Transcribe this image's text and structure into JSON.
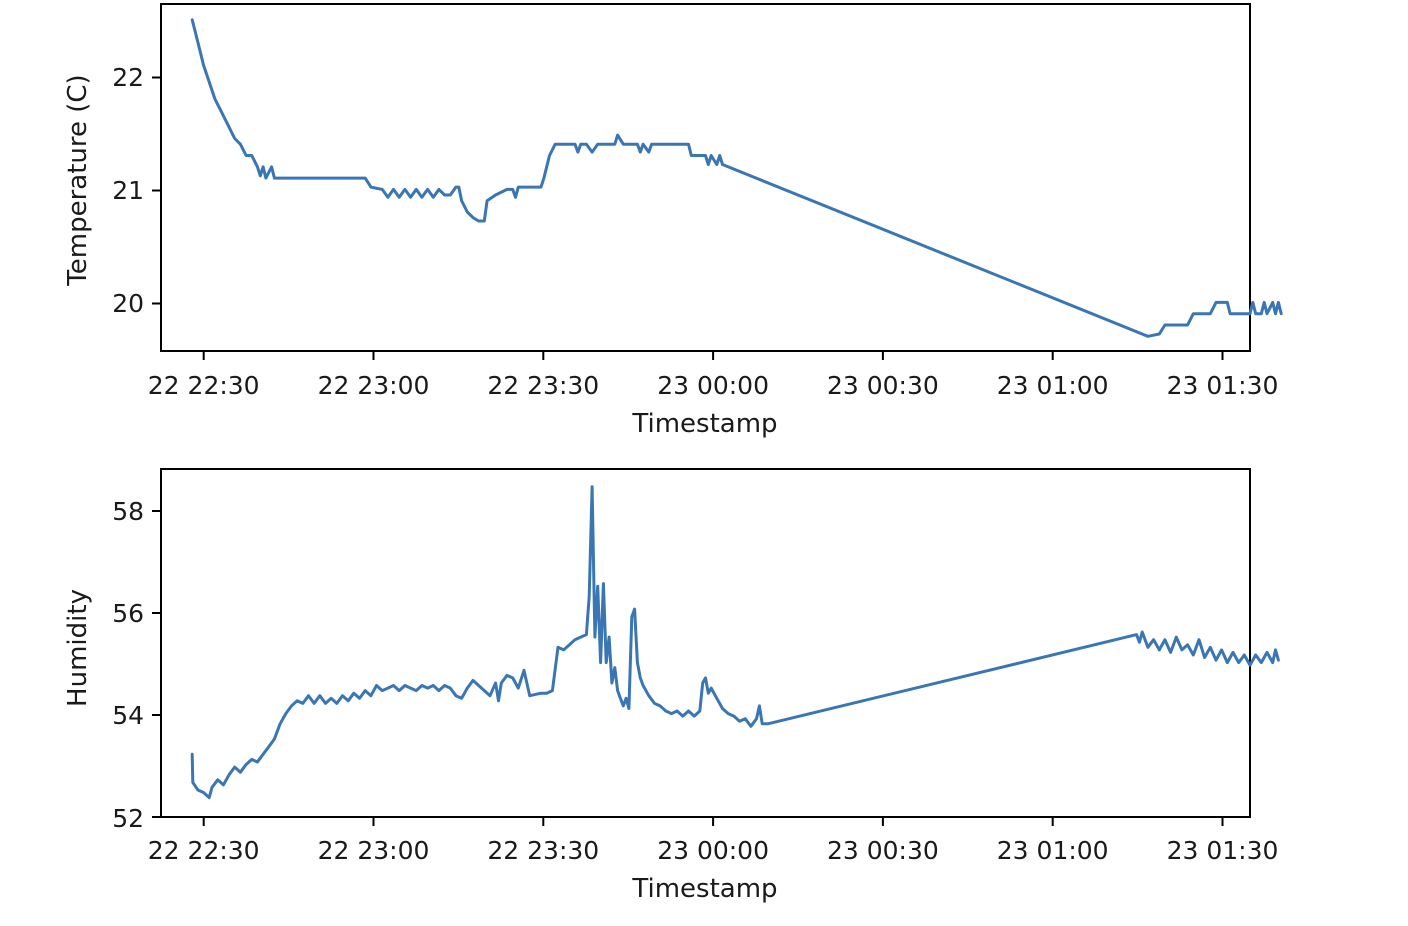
{
  "chart_data": [
    {
      "type": "line",
      "xlabel": "Timestamp",
      "ylabel": "Temperature (C)",
      "x_tick_labels": [
        "22 22:30",
        "22 23:00",
        "22 23:30",
        "23 00:00",
        "23 00:30",
        "23 01:00",
        "23 01:30"
      ],
      "y_ticks": [
        20,
        21,
        22
      ],
      "xlim": [
        -4,
        188
      ],
      "ylim": [
        19.57,
        22.64
      ],
      "x_unit": "minutes after 22 22:30",
      "series": [
        {
          "color": "#3a76b4",
          "points": [
            [
              1.5,
              22.5
            ],
            [
              2.5,
              22.3
            ],
            [
              3.5,
              22.1
            ],
            [
              4.5,
              21.95
            ],
            [
              5.5,
              21.8
            ],
            [
              6.5,
              21.7
            ],
            [
              8,
              21.55
            ],
            [
              9,
              21.45
            ],
            [
              10,
              21.4
            ],
            [
              11,
              21.3
            ],
            [
              12,
              21.3
            ],
            [
              13,
              21.2
            ],
            [
              13.5,
              21.12
            ],
            [
              14,
              21.2
            ],
            [
              14.5,
              21.1
            ],
            [
              15.5,
              21.2
            ],
            [
              16,
              21.1
            ],
            [
              24,
              21.1
            ],
            [
              30,
              21.1
            ],
            [
              32,
              21.1
            ],
            [
              33,
              21.02
            ],
            [
              35,
              21.0
            ],
            [
              36,
              20.93
            ],
            [
              37,
              21.0
            ],
            [
              38,
              20.93
            ],
            [
              39,
              21.0
            ],
            [
              40,
              20.93
            ],
            [
              41,
              21.0
            ],
            [
              42,
              20.93
            ],
            [
              43,
              21.0
            ],
            [
              44,
              20.93
            ],
            [
              45,
              21.0
            ],
            [
              46,
              20.95
            ],
            [
              47,
              20.95
            ],
            [
              48,
              21.02
            ],
            [
              48.5,
              21.02
            ],
            [
              49,
              20.9
            ],
            [
              50,
              20.8
            ],
            [
              51,
              20.75
            ],
            [
              52,
              20.72
            ],
            [
              53,
              20.72
            ],
            [
              53.5,
              20.9
            ],
            [
              55,
              20.95
            ],
            [
              57,
              21.0
            ],
            [
              58,
              21.0
            ],
            [
              58.5,
              20.93
            ],
            [
              59,
              21.02
            ],
            [
              62,
              21.02
            ],
            [
              63,
              21.02
            ],
            [
              63.5,
              21.1
            ],
            [
              64.5,
              21.3
            ],
            [
              65.5,
              21.4
            ],
            [
              69,
              21.4
            ],
            [
              69.5,
              21.33
            ],
            [
              70,
              21.4
            ],
            [
              71,
              21.4
            ],
            [
              72,
              21.33
            ],
            [
              73,
              21.4
            ],
            [
              76,
              21.4
            ],
            [
              76.5,
              21.48
            ],
            [
              77.5,
              21.4
            ],
            [
              80,
              21.4
            ],
            [
              80.5,
              21.33
            ],
            [
              81,
              21.4
            ],
            [
              82,
              21.33
            ],
            [
              82.5,
              21.4
            ],
            [
              85,
              21.4
            ],
            [
              87,
              21.4
            ],
            [
              89,
              21.4
            ],
            [
              89.5,
              21.3
            ],
            [
              92,
              21.3
            ],
            [
              92.5,
              21.22
            ],
            [
              93,
              21.3
            ],
            [
              94,
              21.22
            ],
            [
              94.5,
              21.3
            ],
            [
              95,
              21.22
            ],
            [
              170,
              19.7
            ],
            [
              172,
              19.72
            ],
            [
              173,
              19.8
            ],
            [
              177,
              19.8
            ],
            [
              178,
              19.9
            ],
            [
              181,
              19.9
            ],
            [
              182,
              20.0
            ],
            [
              184,
              20.0
            ],
            [
              184.5,
              19.9
            ],
            [
              188,
              19.9
            ],
            [
              188.5,
              20.0
            ],
            [
              189,
              19.9
            ],
            [
              190,
              19.9
            ],
            [
              190.5,
              20.0
            ],
            [
              191,
              19.9
            ],
            [
              192,
              20.0
            ],
            [
              192.5,
              19.9
            ],
            [
              193,
              20.0
            ],
            [
              193.5,
              19.9
            ]
          ]
        }
      ]
    },
    {
      "type": "line",
      "xlabel": "Timestamp",
      "ylabel": "Humidity",
      "x_tick_labels": [
        "22 22:30",
        "22 23:00",
        "22 23:30",
        "23 00:00",
        "23 00:30",
        "23 01:00",
        "23 01:30"
      ],
      "y_ticks": [
        52,
        54,
        56,
        58
      ],
      "xlim": [
        -4,
        188
      ],
      "ylim": [
        51.97,
        58.8
      ],
      "x_unit": "minutes after 22 22:30",
      "series": [
        {
          "color": "#3a76b4",
          "points": [
            [
              1.5,
              53.2
            ],
            [
              1.6,
              52.65
            ],
            [
              2.5,
              52.5
            ],
            [
              3.5,
              52.45
            ],
            [
              4.5,
              52.35
            ],
            [
              5,
              52.55
            ],
            [
              6,
              52.7
            ],
            [
              7,
              52.6
            ],
            [
              8,
              52.8
            ],
            [
              9,
              52.95
            ],
            [
              10,
              52.85
            ],
            [
              11,
              53.0
            ],
            [
              12,
              53.1
            ],
            [
              13,
              53.05
            ],
            [
              14,
              53.2
            ],
            [
              15,
              53.35
            ],
            [
              16,
              53.5
            ],
            [
              17,
              53.8
            ],
            [
              18,
              54.0
            ],
            [
              19,
              54.15
            ],
            [
              20,
              54.25
            ],
            [
              21,
              54.2
            ],
            [
              22,
              54.35
            ],
            [
              23,
              54.2
            ],
            [
              24,
              54.35
            ],
            [
              25,
              54.2
            ],
            [
              26,
              54.3
            ],
            [
              27,
              54.2
            ],
            [
              28,
              54.35
            ],
            [
              29,
              54.25
            ],
            [
              30,
              54.4
            ],
            [
              31,
              54.3
            ],
            [
              32,
              54.45
            ],
            [
              33,
              54.35
            ],
            [
              34,
              54.55
            ],
            [
              35,
              54.45
            ],
            [
              36,
              54.5
            ],
            [
              37,
              54.55
            ],
            [
              38,
              54.45
            ],
            [
              39,
              54.55
            ],
            [
              40,
              54.5
            ],
            [
              41,
              54.45
            ],
            [
              42,
              54.55
            ],
            [
              43,
              54.5
            ],
            [
              44,
              54.55
            ],
            [
              45,
              54.45
            ],
            [
              46,
              54.55
            ],
            [
              47,
              54.5
            ],
            [
              48,
              54.35
            ],
            [
              49,
              54.3
            ],
            [
              50,
              54.5
            ],
            [
              51,
              54.65
            ],
            [
              52,
              54.55
            ],
            [
              53,
              54.45
            ],
            [
              54,
              54.35
            ],
            [
              55,
              54.6
            ],
            [
              55.5,
              54.25
            ],
            [
              56,
              54.6
            ],
            [
              57,
              54.75
            ],
            [
              58,
              54.7
            ],
            [
              59,
              54.5
            ],
            [
              60,
              54.85
            ],
            [
              61,
              54.35
            ],
            [
              63,
              54.4
            ],
            [
              64,
              54.4
            ],
            [
              65,
              54.45
            ],
            [
              66,
              55.3
            ],
            [
              67,
              55.25
            ],
            [
              68,
              55.35
            ],
            [
              69,
              55.45
            ],
            [
              70,
              55.5
            ],
            [
              71,
              55.55
            ],
            [
              71.5,
              56.3
            ],
            [
              72,
              58.45
            ],
            [
              72.5,
              55.5
            ],
            [
              73,
              56.5
            ],
            [
              73.5,
              55.0
            ],
            [
              74,
              56.55
            ],
            [
              74.5,
              55.0
            ],
            [
              75,
              55.5
            ],
            [
              75.5,
              54.6
            ],
            [
              76,
              54.9
            ],
            [
              76.5,
              54.45
            ],
            [
              77,
              54.3
            ],
            [
              77.5,
              54.15
            ],
            [
              78,
              54.3
            ],
            [
              78.5,
              54.1
            ],
            [
              79,
              55.9
            ],
            [
              79.5,
              56.05
            ],
            [
              80,
              55.0
            ],
            [
              80.5,
              54.7
            ],
            [
              81,
              54.55
            ],
            [
              82,
              54.35
            ],
            [
              83,
              54.2
            ],
            [
              84,
              54.15
            ],
            [
              85,
              54.05
            ],
            [
              86,
              54.0
            ],
            [
              87,
              54.05
            ],
            [
              88,
              53.95
            ],
            [
              89,
              54.05
            ],
            [
              90,
              53.95
            ],
            [
              91,
              54.05
            ],
            [
              91.5,
              54.6
            ],
            [
              92,
              54.7
            ],
            [
              92.5,
              54.4
            ],
            [
              93,
              54.5
            ],
            [
              94,
              54.3
            ],
            [
              95,
              54.1
            ],
            [
              96,
              54.0
            ],
            [
              97,
              53.95
            ],
            [
              98,
              53.85
            ],
            [
              99,
              53.9
            ],
            [
              100,
              53.75
            ],
            [
              101,
              53.9
            ],
            [
              101.5,
              54.15
            ],
            [
              102,
              53.8
            ],
            [
              103,
              53.8
            ],
            [
              168,
              55.55
            ],
            [
              168.5,
              55.4
            ],
            [
              169,
              55.6
            ],
            [
              170,
              55.3
            ],
            [
              171,
              55.45
            ],
            [
              172,
              55.25
            ],
            [
              173,
              55.45
            ],
            [
              174,
              55.2
            ],
            [
              175,
              55.5
            ],
            [
              176,
              55.25
            ],
            [
              177,
              55.35
            ],
            [
              178,
              55.15
            ],
            [
              179,
              55.45
            ],
            [
              180,
              55.1
            ],
            [
              181,
              55.3
            ],
            [
              182,
              55.05
            ],
            [
              183,
              55.25
            ],
            [
              184,
              55.0
            ],
            [
              185,
              55.2
            ],
            [
              186,
              55.0
            ],
            [
              187,
              55.15
            ],
            [
              188,
              54.95
            ],
            [
              189,
              55.15
            ],
            [
              190,
              55.0
            ],
            [
              191,
              55.2
            ],
            [
              192,
              55.0
            ],
            [
              192.5,
              55.25
            ],
            [
              193,
              55.05
            ]
          ]
        }
      ]
    }
  ]
}
